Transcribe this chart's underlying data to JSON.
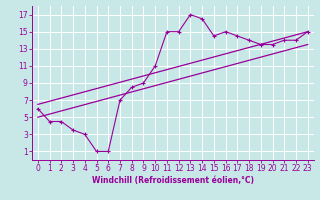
{
  "xlabel": "Windchill (Refroidissement éolien,°C)",
  "bg_color": "#c8e8e8",
  "line_color": "#990099",
  "grid_color": "#ffffff",
  "xlim": [
    -0.5,
    23.5
  ],
  "ylim": [
    0,
    18
  ],
  "x_ticks": [
    0,
    1,
    2,
    3,
    4,
    5,
    6,
    7,
    8,
    9,
    10,
    11,
    12,
    13,
    14,
    15,
    16,
    17,
    18,
    19,
    20,
    21,
    22,
    23
  ],
  "y_ticks": [
    1,
    3,
    5,
    7,
    9,
    11,
    13,
    15,
    17
  ],
  "main_line_x": [
    0,
    1,
    2,
    3,
    4,
    5,
    6,
    7,
    8,
    9,
    10,
    11,
    12,
    13,
    14,
    15,
    16,
    17,
    18,
    19,
    20,
    21,
    22,
    23
  ],
  "main_line_y": [
    6,
    4.5,
    4.5,
    3.5,
    3,
    1,
    1,
    7,
    8.5,
    9,
    11,
    15,
    15,
    17,
    16.5,
    14.5,
    15,
    14.5,
    14,
    13.5,
    13.5,
    14,
    14,
    15
  ],
  "upper_line_x": [
    0,
    23
  ],
  "upper_line_y": [
    6.5,
    15.0
  ],
  "lower_line_x": [
    0,
    23
  ],
  "lower_line_y": [
    5.0,
    13.5
  ],
  "xlabel_fontsize": 5.5,
  "tick_fontsize": 5.5
}
